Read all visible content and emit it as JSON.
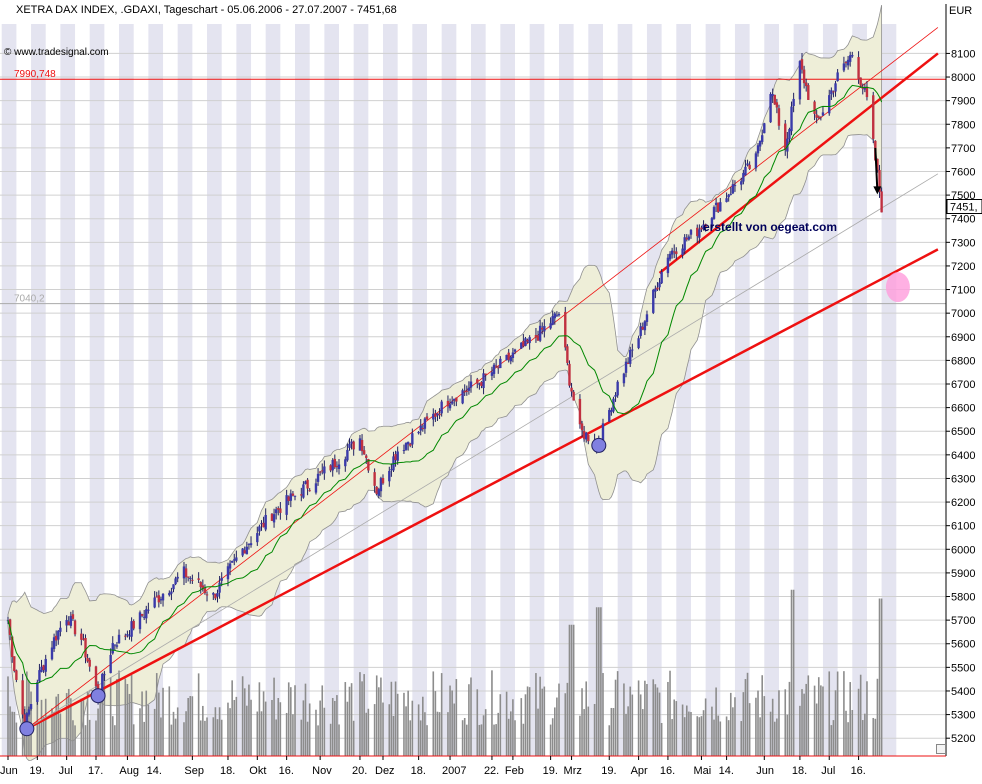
{
  "header": {
    "title": "XETRA DAX INDEX, .GDAXI, Tageschart - 05.06.2006 - 27.07.2007 - 7451,68",
    "credit": "© www.tradesignal.com",
    "watermark": "erstellt von oegeat.com"
  },
  "colors": {
    "up_candle": "#3a3aaa",
    "down_candle": "#c03040",
    "trendline": "#ee1111",
    "band_fill": "#eeeed8",
    "moving_average": "#008800",
    "circle_marker": "#8080e0",
    "target_marker": "#ff9cdc"
  },
  "chart_data": {
    "type": "candlestick",
    "title": "XETRA DAX INDEX, .GDAXI, Tageschart - 05.06.2006 - 27.07.2007 - 7451,68",
    "currency": "EUR",
    "last_value_label": "7451,",
    "ylim": [
      5150,
      8250
    ],
    "yticks": [
      5200,
      5300,
      5400,
      5500,
      5600,
      5700,
      5800,
      5900,
      6000,
      6100,
      6200,
      6300,
      6400,
      6500,
      6600,
      6700,
      6800,
      6900,
      7000,
      7100,
      7200,
      7300,
      7400,
      7500,
      7600,
      7700,
      7800,
      7900,
      8000,
      8100
    ],
    "xlim": [
      "2006-06-05",
      "2007-07-27"
    ],
    "x_tick_labels": [
      {
        "label": "Jun",
        "date": "2006-06-05"
      },
      {
        "label": "19.",
        "date": "2006-06-19"
      },
      {
        "label": "Jul",
        "date": "2006-07-03"
      },
      {
        "label": "17.",
        "date": "2006-07-17"
      },
      {
        "label": "Aug",
        "date": "2006-08-01"
      },
      {
        "label": "14.",
        "date": "2006-08-14"
      },
      {
        "label": "Sep",
        "date": "2006-09-01"
      },
      {
        "label": "18.",
        "date": "2006-09-18"
      },
      {
        "label": "Okt",
        "date": "2006-10-02"
      },
      {
        "label": "16.",
        "date": "2006-10-16"
      },
      {
        "label": "Nov",
        "date": "2006-11-01"
      },
      {
        "label": "20.",
        "date": "2006-11-20"
      },
      {
        "label": "Dez",
        "date": "2006-12-01"
      },
      {
        "label": "18.",
        "date": "2006-12-18"
      },
      {
        "label": "2007",
        "date": "2007-01-02"
      },
      {
        "label": "22.",
        "date": "2007-01-22"
      },
      {
        "label": "Feb",
        "date": "2007-02-01"
      },
      {
        "label": "19.",
        "date": "2007-02-19"
      },
      {
        "label": "Mrz",
        "date": "2007-03-01"
      },
      {
        "label": "19.",
        "date": "2007-03-19"
      },
      {
        "label": "Apr",
        "date": "2007-04-02"
      },
      {
        "label": "16.",
        "date": "2007-04-16"
      },
      {
        "label": "Mai",
        "date": "2007-05-02"
      },
      {
        "label": "14.",
        "date": "2007-05-14"
      },
      {
        "label": "Jun",
        "date": "2007-06-01"
      },
      {
        "label": "18.",
        "date": "2007-06-18"
      },
      {
        "label": "Jul",
        "date": "2007-07-02"
      },
      {
        "label": "16.",
        "date": "2007-07-16"
      }
    ],
    "horizontal_levels": [
      {
        "label": "7990,748",
        "value": 7990.748,
        "color": "#ee1111"
      },
      {
        "label": "7040,2",
        "value": 7040.2,
        "color": "#aaaaaa"
      }
    ],
    "price_path": [
      {
        "date": "2006-06-05",
        "close": 5700
      },
      {
        "date": "2006-06-08",
        "close": 5500
      },
      {
        "date": "2006-06-13",
        "close": 5250
      },
      {
        "date": "2006-06-19",
        "close": 5450
      },
      {
        "date": "2006-06-26",
        "close": 5600
      },
      {
        "date": "2006-07-03",
        "close": 5720
      },
      {
        "date": "2006-07-10",
        "close": 5620
      },
      {
        "date": "2006-07-18",
        "close": 5380
      },
      {
        "date": "2006-07-25",
        "close": 5600
      },
      {
        "date": "2006-08-01",
        "close": 5650
      },
      {
        "date": "2006-08-14",
        "close": 5780
      },
      {
        "date": "2006-08-28",
        "close": 5900
      },
      {
        "date": "2006-09-11",
        "close": 5800
      },
      {
        "date": "2006-09-25",
        "close": 6000
      },
      {
        "date": "2006-10-09",
        "close": 6150
      },
      {
        "date": "2006-10-23",
        "close": 6250
      },
      {
        "date": "2006-11-06",
        "close": 6350
      },
      {
        "date": "2006-11-20",
        "close": 6470
      },
      {
        "date": "2006-11-28",
        "close": 6250
      },
      {
        "date": "2006-12-08",
        "close": 6420
      },
      {
        "date": "2006-12-18",
        "close": 6500
      },
      {
        "date": "2007-01-02",
        "close": 6640
      },
      {
        "date": "2007-01-15",
        "close": 6700
      },
      {
        "date": "2007-01-29",
        "close": 6800
      },
      {
        "date": "2007-02-12",
        "close": 6900
      },
      {
        "date": "2007-02-23",
        "close": 7000
      },
      {
        "date": "2007-02-28",
        "close": 6720
      },
      {
        "date": "2007-03-05",
        "close": 6500
      },
      {
        "date": "2007-03-14",
        "close": 6450
      },
      {
        "date": "2007-03-23",
        "close": 6700
      },
      {
        "date": "2007-04-02",
        "close": 6900
      },
      {
        "date": "2007-04-16",
        "close": 7250
      },
      {
        "date": "2007-04-30",
        "close": 7350
      },
      {
        "date": "2007-05-14",
        "close": 7500
      },
      {
        "date": "2007-05-28",
        "close": 7650
      },
      {
        "date": "2007-06-04",
        "close": 7950
      },
      {
        "date": "2007-06-11",
        "close": 7700
      },
      {
        "date": "2007-06-18",
        "close": 8050
      },
      {
        "date": "2007-06-26",
        "close": 7800
      },
      {
        "date": "2007-07-06",
        "close": 8000
      },
      {
        "date": "2007-07-13",
        "close": 8100
      },
      {
        "date": "2007-07-20",
        "close": 7900
      },
      {
        "date": "2007-07-24",
        "close": 7650
      },
      {
        "date": "2007-07-27",
        "close": 7451.68
      }
    ],
    "volume_relative": {
      "range": [
        0,
        1
      ],
      "spikes": [
        {
          "date": "2007-03-01",
          "value": 0.75
        },
        {
          "date": "2007-03-14",
          "value": 0.85
        },
        {
          "date": "2007-06-15",
          "value": 0.95
        },
        {
          "date": "2007-07-27",
          "value": 0.9
        }
      ],
      "typical": 0.35
    },
    "trendlines": [
      {
        "name": "long-support",
        "from": {
          "date": "2006-06-14",
          "value": 5240
        },
        "to": {
          "date": "2007-07-30",
          "value": 7270
        },
        "color": "#ee1111"
      },
      {
        "name": "short-support",
        "from": {
          "date": "2007-04-12",
          "value": 7170
        },
        "to": {
          "date": "2007-07-30",
          "value": 8100
        },
        "color": "#ee1111"
      },
      {
        "name": "channel-thin",
        "from": {
          "date": "2006-06-14",
          "value": 5240
        },
        "to": {
          "date": "2007-07-30",
          "value": 8210
        },
        "color": "#ee1111"
      },
      {
        "name": "regression-thin",
        "from": {
          "date": "2006-06-14",
          "value": 5240
        },
        "to": {
          "date": "2007-07-30",
          "value": 7590
        },
        "color": "#aaaaaa"
      }
    ],
    "markers": [
      {
        "kind": "touch-circle",
        "date": "2006-06-14",
        "value": 5240
      },
      {
        "kind": "touch-circle",
        "date": "2006-07-18",
        "value": 5380
      },
      {
        "kind": "touch-circle",
        "date": "2007-03-14",
        "value": 6440
      },
      {
        "kind": "target-ellipse",
        "date": "2007-07-30",
        "value": 7110
      }
    ],
    "arrow": {
      "from": {
        "date": "2007-07-24",
        "value": 7700
      },
      "to": {
        "date": "2007-07-25",
        "value": 7520
      }
    },
    "grid": true,
    "alternating_week_stripes": true
  }
}
